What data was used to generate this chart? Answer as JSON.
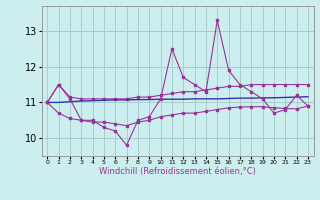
{
  "x": [
    0,
    1,
    2,
    3,
    4,
    5,
    6,
    7,
    8,
    9,
    10,
    11,
    12,
    13,
    14,
    15,
    16,
    17,
    18,
    19,
    20,
    21,
    22,
    23
  ],
  "y_main": [
    11.0,
    11.5,
    11.1,
    10.5,
    10.5,
    10.3,
    10.2,
    9.8,
    10.5,
    10.6,
    11.1,
    12.5,
    11.7,
    11.5,
    11.3,
    13.3,
    11.9,
    11.5,
    11.3,
    11.1,
    10.7,
    10.8,
    11.2,
    10.9
  ],
  "y_upper": [
    11.0,
    11.5,
    11.15,
    11.1,
    11.1,
    11.1,
    11.1,
    11.1,
    11.15,
    11.15,
    11.2,
    11.25,
    11.3,
    11.3,
    11.35,
    11.4,
    11.45,
    11.45,
    11.5,
    11.5,
    11.5,
    11.5,
    11.5,
    11.5
  ],
  "y_lower": [
    11.0,
    10.7,
    10.55,
    10.5,
    10.45,
    10.45,
    10.4,
    10.35,
    10.45,
    10.5,
    10.6,
    10.65,
    10.7,
    10.7,
    10.75,
    10.8,
    10.85,
    10.87,
    10.88,
    10.88,
    10.85,
    10.83,
    10.82,
    10.9
  ],
  "y_trend": [
    11.0,
    11.0,
    11.02,
    11.04,
    11.05,
    11.06,
    11.07,
    11.07,
    11.08,
    11.08,
    11.09,
    11.09,
    11.09,
    11.1,
    11.1,
    11.1,
    11.11,
    11.12,
    11.12,
    11.13,
    11.13,
    11.14,
    11.15,
    11.16
  ],
  "color_main": "#993399",
  "color_upper": "#993399",
  "color_lower": "#993399",
  "color_trend": "#3333aa",
  "bg_color": "#cceeee",
  "grid_color": "#aacccc",
  "xlabel": "Windchill (Refroidissement éolien,°C)",
  "yticks": [
    10,
    11,
    12,
    13
  ],
  "ylim": [
    9.5,
    13.7
  ],
  "xlim": [
    -0.5,
    23.5
  ]
}
